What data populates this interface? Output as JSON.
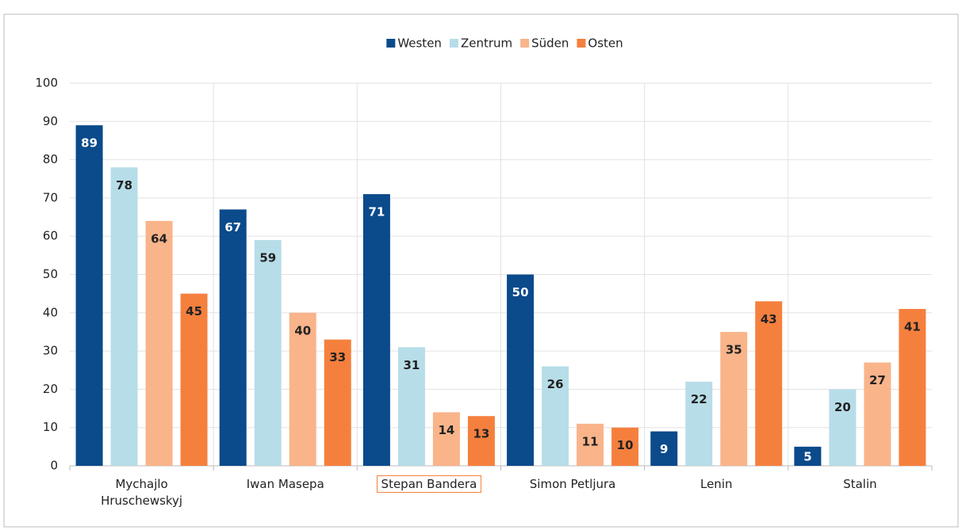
{
  "chart_data": {
    "type": "bar",
    "categories": [
      "Mychajlo Hruschewskyj",
      "Iwan Masepa",
      "Stepan Bandera",
      "Simon Petljura",
      "Lenin",
      "Stalin"
    ],
    "series": [
      {
        "name": "Westen",
        "color": "#0b4a8b",
        "label_color": "#ffffff",
        "values": [
          89,
          67,
          71,
          50,
          9,
          5
        ]
      },
      {
        "name": "Zentrum",
        "color": "#b7dde8",
        "label_color": "#222222",
        "values": [
          78,
          59,
          31,
          26,
          22,
          20
        ]
      },
      {
        "name": "Süden",
        "color": "#f9b48a",
        "label_color": "#222222",
        "values": [
          64,
          40,
          14,
          11,
          35,
          27
        ]
      },
      {
        "name": "Osten",
        "color": "#f5803e",
        "label_color": "#222222",
        "values": [
          45,
          33,
          13,
          10,
          43,
          41
        ]
      }
    ],
    "ylim": [
      0,
      100
    ],
    "yticks": [
      0,
      10,
      20,
      30,
      40,
      50,
      60,
      70,
      80,
      90,
      100
    ],
    "grid": true,
    "legend": "top"
  }
}
